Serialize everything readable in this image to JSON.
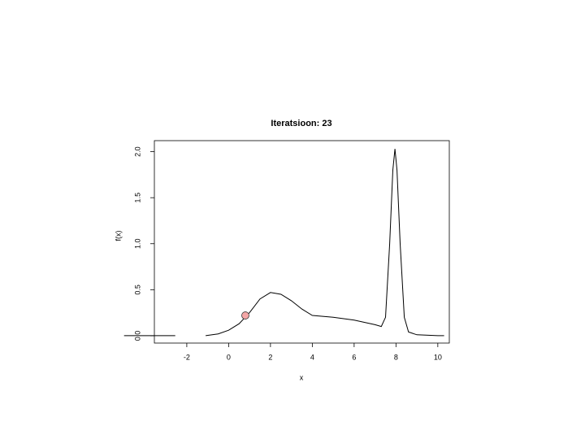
{
  "chart_data": {
    "type": "line",
    "title": "Iteratsioon: 23",
    "x_label": "x",
    "y_label": "f(x)",
    "xlim": [
      -3.55,
      10.55
    ],
    "ylim": [
      -0.08,
      2.12
    ],
    "xticks": [
      -2,
      0,
      2,
      4,
      6,
      8,
      10
    ],
    "yticks": [
      {
        "value": 0,
        "label": "0.0"
      },
      {
        "value": 0.5,
        "label": "0.5"
      },
      {
        "value": 1,
        "label": "1.0"
      },
      {
        "value": 1.5,
        "label": "1.5"
      },
      {
        "value": 2,
        "label": "2.0"
      }
    ],
    "series": [
      {
        "color": "#000000",
        "x": [
          -5.0,
          -2.55,
          null,
          -1.1,
          -0.5,
          0,
          0.5,
          1,
          1.5,
          2,
          2.5,
          3,
          3.5,
          4,
          5,
          6,
          7,
          7.3,
          7.5,
          7.7,
          7.85,
          7.95,
          8.05,
          8.2,
          8.4,
          8.6,
          9,
          10,
          10.3
        ],
        "values": [
          0,
          0,
          null,
          0,
          0.02,
          0.06,
          0.13,
          0.25,
          0.4,
          0.47,
          0.45,
          0.38,
          0.29,
          0.22,
          0.2,
          0.17,
          0.12,
          0.1,
          0.2,
          1.0,
          1.8,
          2.03,
          1.8,
          1.0,
          0.2,
          0.04,
          0.01,
          0,
          0
        ]
      }
    ],
    "point": {
      "x": 0.8,
      "y": 0.22,
      "color": "#f4a6a6"
    }
  }
}
